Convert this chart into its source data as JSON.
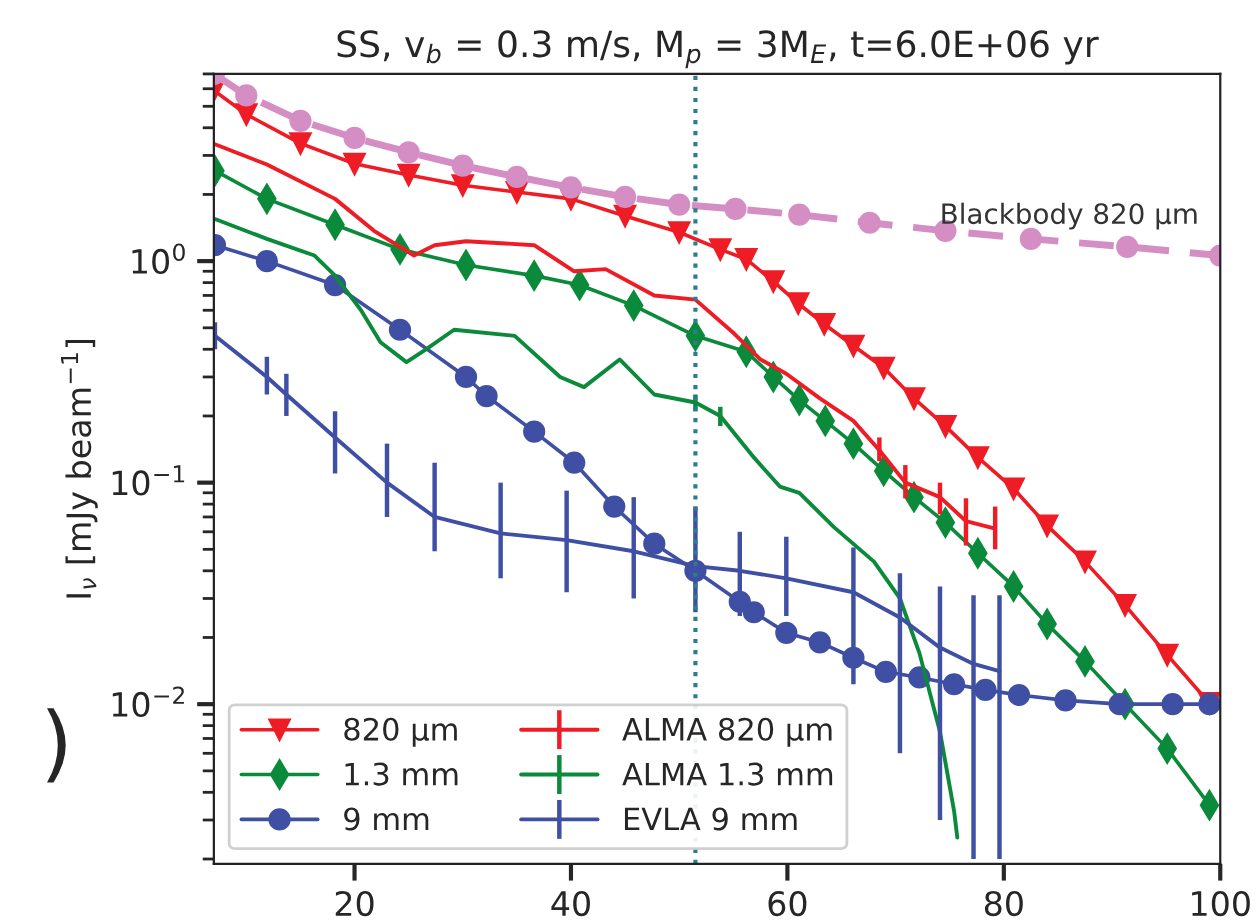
{
  "chart_data": {
    "type": "line",
    "title": "SS, v$_{b}$ = 0.3 m/s, M$_{p}$ = 3M$_{E}$, t=6.0E+06 yr",
    "ylabel": "I$_{ν}$ [mJy beam$^{−1}$]",
    "log": "y",
    "xlim": [
      7,
      100
    ],
    "xticks": [
      20,
      40,
      60,
      80,
      100
    ],
    "ylim": [
      0.0019,
      7
    ],
    "yticks": [
      {
        "value": 0.01,
        "label": "10$^{−2}$"
      },
      {
        "value": 0.1,
        "label": "10$^{−1}$"
      },
      {
        "value": 1,
        "label": "10$^{0}$"
      }
    ],
    "grid": false,
    "legend": "bottom left",
    "series": [
      {
        "name": "820 μm",
        "color": "#ee1c25",
        "marker": "triangle",
        "line_style": "solid",
        "x": [
          7,
          10,
          15,
          20,
          25,
          30,
          35,
          40,
          45,
          50,
          53.8,
          56.2,
          58.7,
          61.0,
          63.4,
          66.1,
          68.9,
          71.7,
          74.6,
          77.6,
          80.9,
          84.0,
          87.5,
          91.2,
          95.1,
          99.0
        ],
        "values": [
          5.9,
          4.6,
          3.4,
          2.75,
          2.45,
          2.2,
          2.05,
          1.91,
          1.6,
          1.35,
          1.13,
          1.02,
          0.81,
          0.644,
          0.52,
          0.415,
          0.33,
          0.24,
          0.18,
          0.13,
          0.094,
          0.064,
          0.044,
          0.028,
          0.0167,
          0.0101
        ]
      },
      {
        "name": "1.3 mm",
        "color": "#0a8a3a",
        "marker": "diamond",
        "line_style": "solid",
        "x": [
          7.1,
          11.9,
          18.2,
          24.2,
          30.3,
          36.6,
          40.8,
          45.8,
          51.5,
          56.2,
          58.7,
          61.1,
          63.5,
          66.1,
          68.9,
          71.7,
          74.6,
          77.6,
          80.9,
          84.0,
          87.5,
          91.2,
          95.1,
          99.0
        ],
        "values": [
          2.56,
          1.91,
          1.46,
          1.13,
          0.96,
          0.86,
          0.78,
          0.63,
          0.46,
          0.39,
          0.3,
          0.236,
          0.19,
          0.15,
          0.113,
          0.086,
          0.066,
          0.048,
          0.034,
          0.023,
          0.0156,
          0.01,
          0.0063,
          0.0035
        ]
      },
      {
        "name": "9 mm",
        "color": "#3f4fa3",
        "marker": "circle",
        "line_style": "solid",
        "x": [
          7.1,
          11.9,
          18.2,
          24.2,
          30.3,
          32.2,
          36.6,
          40.3,
          44.0,
          47.7,
          51.5,
          55.6,
          56.9,
          59.9,
          63.0,
          66.1,
          69.1,
          72.2,
          75.4,
          78.3,
          81.4,
          85.7,
          90.7,
          95.6,
          99.0
        ],
        "values": [
          1.18,
          1.0,
          0.78,
          0.49,
          0.3,
          0.246,
          0.17,
          0.123,
          0.078,
          0.053,
          0.04,
          0.029,
          0.026,
          0.021,
          0.019,
          0.0162,
          0.014,
          0.0132,
          0.0123,
          0.0116,
          0.011,
          0.0104,
          0.01,
          0.01,
          0.01
        ]
      },
      {
        "name": "ALMA 820 μm",
        "color": "#ee1c25",
        "marker": "none",
        "line_style": "solid",
        "x": [
          7.1,
          11.9,
          18.2,
          21.8,
          25.5,
          27.4,
          30.3,
          36.6,
          40.3,
          43.2,
          47.7,
          51.5,
          55.1,
          57.5,
          59.9,
          63.0,
          66.1,
          68.5,
          70.9,
          74.1,
          76.5,
          79.2
        ],
        "values": [
          3.37,
          2.73,
          1.91,
          1.37,
          1.06,
          1.18,
          1.23,
          1.18,
          0.9,
          0.92,
          0.7,
          0.67,
          0.47,
          0.36,
          0.31,
          0.24,
          0.19,
          0.14,
          0.1,
          0.086,
          0.067,
          0.062
        ],
        "errors": [
          null,
          null,
          null,
          null,
          null,
          null,
          null,
          null,
          null,
          null,
          null,
          null,
          null,
          null,
          null,
          null,
          null,
          [
            0.125,
            0.16
          ],
          [
            0.085,
            0.12
          ],
          [
            0.072,
            0.1
          ],
          [
            0.052,
            0.085
          ],
          [
            0.05,
            0.078
          ]
        ]
      },
      {
        "name": "ALMA 1.3 mm",
        "color": "#0a8a3a",
        "marker": "none",
        "line_style": "solid",
        "x": [
          7.1,
          11.9,
          16.3,
          18.2,
          20.6,
          22.4,
          24.8,
          26.6,
          29.2,
          34.8,
          39.0,
          41.2,
          44.5,
          47.7,
          51.5,
          53.8,
          56.9,
          59.3,
          61.1,
          64.3,
          68.0,
          70.4,
          72.2,
          74.1,
          75.4,
          75.7
        ],
        "values": [
          1.55,
          1.26,
          1.06,
          0.86,
          0.6,
          0.43,
          0.35,
          0.4,
          0.49,
          0.46,
          0.3,
          0.27,
          0.36,
          0.25,
          0.23,
          0.2,
          0.13,
          0.096,
          0.09,
          0.063,
          0.044,
          0.03,
          0.017,
          0.0075,
          0.0033,
          0.0025
        ],
        "errors": [
          null,
          null,
          null,
          null,
          null,
          null,
          null,
          null,
          null,
          null,
          null,
          null,
          null,
          null,
          [
            0.21,
            0.25
          ],
          [
            0.18,
            0.22
          ],
          null,
          null,
          null,
          null,
          null,
          null,
          null,
          null,
          null,
          null
        ]
      },
      {
        "name": "EVLA 9 mm",
        "color": "#3f4fa3",
        "marker": "none",
        "line_style": "solid",
        "x": [
          7.1,
          11.9,
          13.7,
          18.2,
          23.0,
          27.4,
          33.5,
          39.6,
          45.8,
          51.5,
          55.6,
          59.9,
          66.1,
          70.4,
          74.1,
          77.2,
          79.6
        ],
        "values": [
          0.46,
          0.3,
          0.25,
          0.16,
          0.1,
          0.07,
          0.059,
          0.055,
          0.049,
          0.042,
          0.04,
          0.037,
          0.032,
          0.0246,
          0.018,
          0.0152,
          0.0141
        ],
        "errors": [
          [
            0.4,
            0.53
          ],
          [
            0.25,
            0.37
          ],
          [
            0.2,
            0.31
          ],
          [
            0.11,
            0.21
          ],
          [
            0.07,
            0.15
          ],
          [
            0.049,
            0.123
          ],
          [
            0.037,
            0.1
          ],
          [
            0.032,
            0.092
          ],
          [
            0.03,
            0.086
          ],
          [
            0.026,
            0.078
          ],
          [
            0.025,
            0.06
          ],
          [
            0.025,
            0.057
          ],
          [
            0.0123,
            0.051
          ],
          [
            0.006,
            0.039
          ],
          [
            0.003,
            0.034
          ],
          [
            0.002,
            0.031
          ],
          [
            0.002,
            0.031
          ]
        ]
      },
      {
        "color": "#d48ec4",
        "marker": "circle",
        "line_style": "dashed",
        "x": [
          7,
          10,
          15,
          20,
          25,
          30,
          35,
          40,
          45,
          50,
          55.2,
          61.1,
          67.6,
          74.6,
          82.5,
          91.4,
          100
        ],
        "values": [
          7.0,
          5.6,
          4.3,
          3.6,
          3.1,
          2.7,
          2.4,
          2.15,
          1.95,
          1.8,
          1.72,
          1.62,
          1.49,
          1.37,
          1.26,
          1.16,
          1.06
        ]
      }
    ],
    "ref_lines": [
      {
        "axis": "x",
        "value": 51.5,
        "color": "#2a7f8f",
        "line_style": "dotted"
      }
    ],
    "annotations": [
      "Blackbody 820 μm",
      ")"
    ]
  }
}
